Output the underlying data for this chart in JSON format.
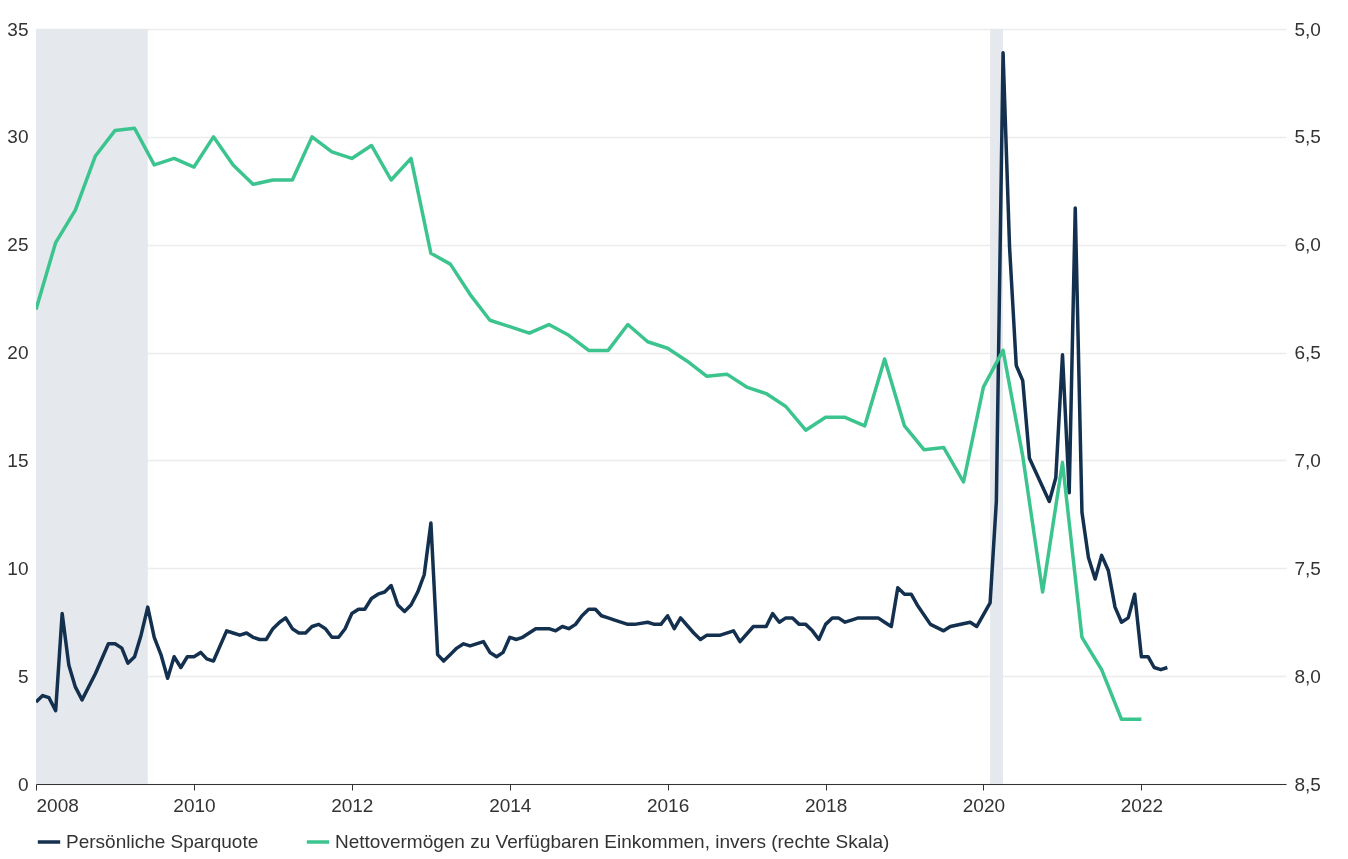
{
  "chart_data": {
    "type": "line",
    "xlim": [
      "2008-01",
      "2023-11"
    ],
    "xticks": [
      "2008",
      "2010",
      "2012",
      "2014",
      "2016",
      "2018",
      "2020",
      "2022"
    ],
    "ylim": [
      0,
      35
    ],
    "yticks": [
      0,
      5,
      10,
      15,
      20,
      25,
      30,
      35
    ],
    "y2lim": [
      8.5,
      5.0
    ],
    "y2ticks": [
      {
        "value": 5.0,
        "label": "5,0"
      },
      {
        "value": 5.5,
        "label": "5,5"
      },
      {
        "value": 6.0,
        "label": "6,0"
      },
      {
        "value": 6.5,
        "label": "6,5"
      },
      {
        "value": 7.0,
        "label": "7,0"
      },
      {
        "value": 7.5,
        "label": "7,5"
      },
      {
        "value": 8.0,
        "label": "8,0"
      },
      {
        "value": 8.5,
        "label": "8,5"
      }
    ],
    "grid": "y",
    "legend": "bottom",
    "bands": [
      {
        "axis": "x",
        "from": "2008-01",
        "to": "2009-06",
        "color": "#e5e9ed"
      },
      {
        "axis": "x",
        "from": "2020-02",
        "to": "2020-04",
        "color": "#e5e9ed"
      }
    ],
    "series": [
      {
        "name": "Persönliche Sparquote",
        "color": "#14304f",
        "x": [
          "2008-01",
          "2008-02",
          "2008-03",
          "2008-04",
          "2008-05",
          "2008-06",
          "2008-07",
          "2008-08",
          "2008-10",
          "2008-12",
          "2009-01",
          "2009-02",
          "2009-03",
          "2009-04",
          "2009-05",
          "2009-06",
          "2009-07",
          "2009-08",
          "2009-09",
          "2009-10",
          "2009-11",
          "2009-12",
          "2010-01",
          "2010-02",
          "2010-03",
          "2010-04",
          "2010-06",
          "2010-07",
          "2010-08",
          "2010-09",
          "2010-10",
          "2010-11",
          "2010-12",
          "2011-01",
          "2011-02",
          "2011-03",
          "2011-04",
          "2011-05",
          "2011-06",
          "2011-07",
          "2011-08",
          "2011-09",
          "2011-10",
          "2011-11",
          "2011-12",
          "2012-01",
          "2012-02",
          "2012-03",
          "2012-04",
          "2012-05",
          "2012-06",
          "2012-07",
          "2012-08",
          "2012-09",
          "2012-10",
          "2012-11",
          "2012-12",
          "2013-01",
          "2013-02",
          "2013-03",
          "2013-04",
          "2013-05",
          "2013-06",
          "2013-07",
          "2013-09",
          "2013-10",
          "2013-11",
          "2013-12",
          "2014-01",
          "2014-02",
          "2014-03",
          "2014-05",
          "2014-07",
          "2014-08",
          "2014-09",
          "2014-10",
          "2014-11",
          "2014-12",
          "2015-01",
          "2015-02",
          "2015-03",
          "2015-04",
          "2015-05",
          "2015-07",
          "2015-08",
          "2015-10",
          "2015-11",
          "2015-12",
          "2016-01",
          "2016-02",
          "2016-03",
          "2016-05",
          "2016-06",
          "2016-07",
          "2016-09",
          "2016-11",
          "2016-12",
          "2017-02",
          "2017-04",
          "2017-05",
          "2017-06",
          "2017-07",
          "2017-08",
          "2017-09",
          "2017-10",
          "2017-11",
          "2017-12",
          "2018-01",
          "2018-02",
          "2018-03",
          "2018-04",
          "2018-05",
          "2018-06",
          "2018-09",
          "2018-10",
          "2018-11",
          "2018-12",
          "2019-01",
          "2019-02",
          "2019-03",
          "2019-05",
          "2019-07",
          "2019-08",
          "2019-11",
          "2019-12",
          "2020-02",
          "2020-03",
          "2020-04",
          "2020-05",
          "2020-06",
          "2020-07",
          "2020-08",
          "2020-11",
          "2020-12",
          "2021-01",
          "2021-02",
          "2021-03",
          "2021-04",
          "2021-05",
          "2021-06",
          "2021-07",
          "2021-08",
          "2021-09",
          "2021-10",
          "2021-11",
          "2021-12",
          "2022-01",
          "2022-02",
          "2022-03",
          "2022-04",
          "2022-05"
        ],
        "values": [
          3.8,
          4.1,
          4.0,
          3.4,
          7.9,
          5.5,
          4.5,
          3.9,
          5.1,
          6.5,
          6.5,
          6.3,
          5.6,
          5.9,
          6.9,
          8.2,
          6.8,
          6.0,
          4.9,
          5.9,
          5.4,
          5.9,
          5.9,
          6.1,
          5.8,
          5.7,
          7.1,
          7.0,
          6.9,
          7.0,
          6.8,
          6.7,
          6.7,
          7.2,
          7.5,
          7.7,
          7.2,
          7.0,
          7.0,
          7.3,
          7.4,
          7.2,
          6.8,
          6.8,
          7.2,
          7.9,
          8.1,
          8.1,
          8.6,
          8.8,
          8.9,
          9.2,
          8.3,
          8.0,
          8.3,
          8.9,
          9.7,
          12.1,
          6.0,
          5.7,
          6.0,
          6.3,
          6.5,
          6.4,
          6.6,
          6.1,
          5.9,
          6.1,
          6.8,
          6.7,
          6.8,
          7.2,
          7.2,
          7.1,
          7.3,
          7.2,
          7.4,
          7.8,
          8.1,
          8.1,
          7.8,
          7.7,
          7.6,
          7.4,
          7.4,
          7.5,
          7.4,
          7.4,
          7.8,
          7.2,
          7.7,
          7.0,
          6.7,
          6.9,
          6.9,
          7.1,
          6.6,
          7.3,
          7.3,
          7.9,
          7.5,
          7.7,
          7.7,
          7.4,
          7.4,
          7.1,
          6.7,
          7.4,
          7.7,
          7.7,
          7.5,
          7.6,
          7.7,
          7.7,
          7.5,
          7.3,
          9.1,
          8.8,
          8.8,
          8.3,
          7.4,
          7.1,
          7.3,
          7.5,
          7.3,
          8.4,
          13.1,
          33.9,
          24.9,
          19.4,
          18.7,
          15.1,
          13.1,
          14.2,
          19.9,
          13.5,
          26.7,
          12.6,
          10.5,
          9.5,
          10.6,
          9.9,
          8.2,
          7.5,
          7.7,
          8.8,
          5.9,
          5.9,
          5.4,
          5.3,
          5.4
        ]
      },
      {
        "name": "Nettovermögen zu Verfügbaren Einkommen, invers (rechte Skala)",
        "color": "#3cc48f",
        "axis": "y2",
        "x": [
          "2008-01",
          "2008-04",
          "2008-07",
          "2008-10",
          "2009-01",
          "2009-04",
          "2009-07",
          "2009-10",
          "2010-01",
          "2010-04",
          "2010-07",
          "2010-10",
          "2011-01",
          "2011-04",
          "2011-07",
          "2011-10",
          "2012-01",
          "2012-04",
          "2012-07",
          "2012-10",
          "2013-01",
          "2013-04",
          "2013-07",
          "2013-10",
          "2014-01",
          "2014-04",
          "2014-07",
          "2014-10",
          "2015-01",
          "2015-04",
          "2015-07",
          "2015-10",
          "2016-01",
          "2016-04",
          "2016-07",
          "2016-10",
          "2017-01",
          "2017-04",
          "2017-07",
          "2017-10",
          "2018-01",
          "2018-04",
          "2018-07",
          "2018-10",
          "2019-01",
          "2019-04",
          "2019-07",
          "2019-10",
          "2020-01",
          "2020-04",
          "2020-07",
          "2020-10",
          "2021-01",
          "2021-04",
          "2021-07",
          "2021-10",
          "2022-01"
        ],
        "values": [
          6.3,
          5.99,
          5.84,
          5.59,
          5.47,
          5.46,
          5.63,
          5.6,
          5.64,
          5.5,
          5.63,
          5.72,
          5.7,
          5.7,
          5.5,
          5.57,
          5.6,
          5.54,
          5.7,
          5.6,
          6.04,
          6.09,
          6.23,
          6.35,
          6.38,
          6.41,
          6.37,
          6.42,
          6.49,
          6.49,
          6.37,
          6.45,
          6.48,
          6.54,
          6.61,
          6.6,
          6.66,
          6.69,
          6.75,
          6.86,
          6.8,
          6.8,
          6.84,
          6.53,
          6.84,
          6.95,
          6.94,
          7.1,
          6.66,
          6.49,
          6.98,
          7.61,
          7.01,
          7.82,
          7.97,
          8.2,
          8.2
        ]
      }
    ]
  }
}
